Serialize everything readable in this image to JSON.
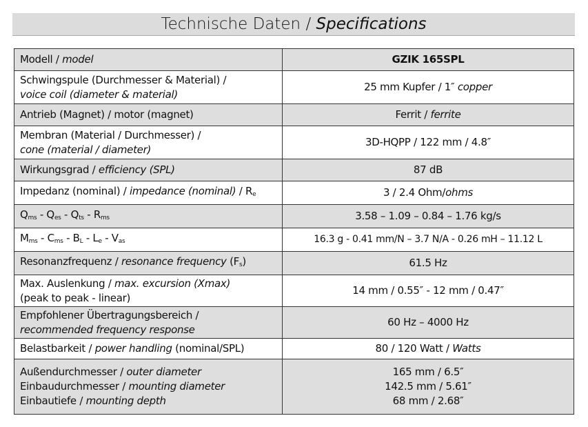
{
  "title": [
    "Technische Daten / ",
    "Specifications"
  ],
  "table": {
    "rows": [
      {
        "label": [
          "Modell / ",
          "model"
        ],
        "value": [
          "GZIK 165SPL"
        ]
      },
      {
        "label": [
          "Schwingspule (Durchmesser & Material) /",
          "voice coil (diameter & material)"
        ],
        "value": [
          "25 mm Kupfer / 1″ ",
          "copper"
        ]
      },
      {
        "label": [
          "Antrieb (Magnet) / motor (magnet)"
        ],
        "value": [
          "Ferrit / ",
          "ferrite"
        ]
      },
      {
        "label": [
          "Membran (Material / Durchmesser) /",
          "cone (material / diameter)"
        ],
        "value": [
          "3D-HQPP / 122 mm / 4.8″"
        ]
      },
      {
        "label": [
          "Wirkungsgrad / ",
          "efficiency (SPL)"
        ],
        "value": [
          "87 dB"
        ]
      },
      {
        "label": [
          "Impedanz (nominal) / ",
          "impedance (nominal)",
          " / R",
          "e"
        ],
        "value": [
          "3 / 2.4 Ohm/",
          "ohms"
        ]
      },
      {
        "label": [
          "Q",
          "ms",
          " - Q",
          "es",
          " - Q",
          "ts",
          " - R",
          "ms"
        ],
        "value": [
          "3.58 – 1.09 – 0.84 – 1.76 kg/s"
        ]
      },
      {
        "label": [
          "M",
          "ms",
          " - C",
          "ms",
          " - B",
          "L",
          " - L",
          "e",
          " - V",
          "as"
        ],
        "value": [
          "16.3 g - 0.41 mm/N – 3.7 N/A - 0.26 mH – 11.12 L"
        ]
      },
      {
        "label": [
          "Resonanzfrequenz / ",
          "resonance frequency",
          " (F",
          "s",
          ")"
        ],
        "value": [
          "61.5 Hz"
        ]
      },
      {
        "label": [
          "Max. Auslenkung / ",
          "max. excursion (Xmax)",
          "(peak to peak - linear)"
        ],
        "value": [
          "14 mm / 0.55″ - 12 mm / 0.47″"
        ]
      },
      {
        "label": [
          "Empfohlener Übertragungsbereich /",
          "recommended frequency response"
        ],
        "value": [
          "60 Hz – 4000 Hz"
        ]
      },
      {
        "label": [
          "Belastbarkeit / ",
          "power handling",
          " (nominal/SPL)"
        ],
        "value": [
          "80 / 120 Watt / ",
          "Watts"
        ]
      },
      {
        "label": [
          "Außendurchmesser / ",
          "outer diameter",
          "Einbaudurchmesser / ",
          "mounting diameter",
          "Einbautiefe / ",
          "mounting depth"
        ],
        "value": [
          "165 mm / 6.5″",
          "142.5 mm / 5.61″",
          "68 mm / 2.68″"
        ]
      }
    ]
  }
}
